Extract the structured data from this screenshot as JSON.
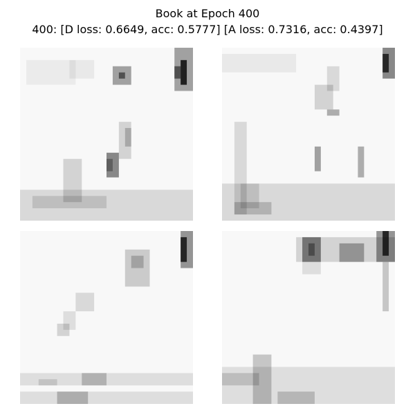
{
  "header": {
    "title": "Book at Epoch 400",
    "subtitle": "400: [D loss: 0.6649, acc: 0.5777]  [A loss: 0.7316, acc: 0.4397]"
  }
}
